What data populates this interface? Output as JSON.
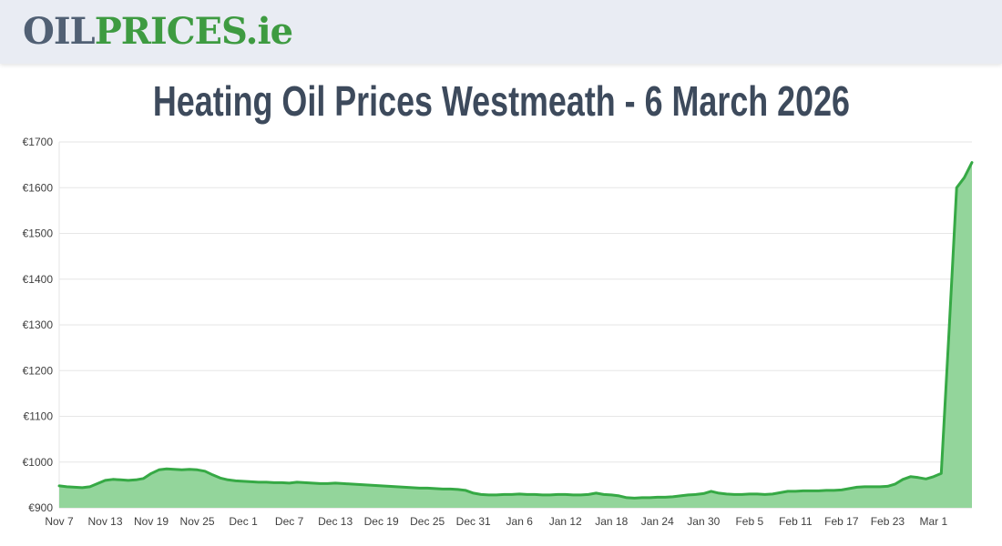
{
  "header": {
    "logo": {
      "oil": "OIL",
      "prices": "PRICES",
      "tld": ".ie",
      "oil_color": "#516074",
      "green_color": "#3e9b41",
      "background": "#e9ecf3"
    }
  },
  "title": {
    "text": "Heating Oil Prices Westmeath - 6 March 2026",
    "color": "#3d4a5c"
  },
  "chart_data": {
    "type": "area",
    "title": "Heating Oil Prices Westmeath - 6 March 2026",
    "xlabel": "",
    "ylabel": "",
    "ylim": [
      900,
      1700
    ],
    "ytick_step": 100,
    "ytick_labels": [
      "€900",
      "€1000",
      "€1100",
      "€1200",
      "€1300",
      "€1400",
      "€1500",
      "€1600",
      "€1700"
    ],
    "xtick_labels": [
      "Nov 7",
      "Nov 13",
      "Nov 19",
      "Nov 25",
      "Dec 1",
      "Dec 7",
      "Dec 13",
      "Dec 19",
      "Dec 25",
      "Dec 31",
      "Jan 6",
      "Jan 12",
      "Jan 18",
      "Jan 24",
      "Jan 30",
      "Feb 5",
      "Feb 11",
      "Feb 17",
      "Feb 23",
      "Mar 1"
    ],
    "xtick_every": 6,
    "grid": "horizontal-only",
    "legend": "off",
    "line_color": "#36a945",
    "fill_color": "#93d59b",
    "grid_color": "#e6e6e6",
    "axis_line_color": "#d6d6d6",
    "categories": [
      "Nov 7",
      "Nov 8",
      "Nov 9",
      "Nov 10",
      "Nov 11",
      "Nov 12",
      "Nov 13",
      "Nov 14",
      "Nov 15",
      "Nov 16",
      "Nov 17",
      "Nov 18",
      "Nov 19",
      "Nov 20",
      "Nov 21",
      "Nov 22",
      "Nov 23",
      "Nov 24",
      "Nov 25",
      "Nov 26",
      "Nov 27",
      "Nov 28",
      "Nov 29",
      "Nov 30",
      "Dec 1",
      "Dec 2",
      "Dec 3",
      "Dec 4",
      "Dec 5",
      "Dec 6",
      "Dec 7",
      "Dec 8",
      "Dec 9",
      "Dec 10",
      "Dec 11",
      "Dec 12",
      "Dec 13",
      "Dec 14",
      "Dec 15",
      "Dec 16",
      "Dec 17",
      "Dec 18",
      "Dec 19",
      "Dec 20",
      "Dec 21",
      "Dec 22",
      "Dec 23",
      "Dec 24",
      "Dec 25",
      "Dec 26",
      "Dec 27",
      "Dec 28",
      "Dec 29",
      "Dec 30",
      "Dec 31",
      "Jan 1",
      "Jan 2",
      "Jan 3",
      "Jan 4",
      "Jan 5",
      "Jan 6",
      "Jan 7",
      "Jan 8",
      "Jan 9",
      "Jan 10",
      "Jan 11",
      "Jan 12",
      "Jan 13",
      "Jan 14",
      "Jan 15",
      "Jan 16",
      "Jan 17",
      "Jan 18",
      "Jan 19",
      "Jan 20",
      "Jan 21",
      "Jan 22",
      "Jan 23",
      "Jan 24",
      "Jan 25",
      "Jan 26",
      "Jan 27",
      "Jan 28",
      "Jan 29",
      "Jan 30",
      "Jan 31",
      "Feb 1",
      "Feb 2",
      "Feb 3",
      "Feb 4",
      "Feb 5",
      "Feb 6",
      "Feb 7",
      "Feb 8",
      "Feb 9",
      "Feb 10",
      "Feb 11",
      "Feb 12",
      "Feb 13",
      "Feb 14",
      "Feb 15",
      "Feb 16",
      "Feb 17",
      "Feb 18",
      "Feb 19",
      "Feb 20",
      "Feb 21",
      "Feb 22",
      "Feb 23",
      "Feb 24",
      "Feb 25",
      "Feb 26",
      "Feb 27",
      "Feb 28",
      "Mar 1",
      "Mar 2",
      "Mar 3",
      "Mar 4",
      "Mar 5",
      "Mar 6"
    ],
    "values": [
      948,
      946,
      945,
      944,
      946,
      953,
      960,
      962,
      961,
      960,
      961,
      964,
      975,
      983,
      985,
      984,
      983,
      984,
      983,
      980,
      972,
      965,
      961,
      959,
      958,
      957,
      956,
      956,
      955,
      955,
      954,
      956,
      955,
      954,
      953,
      953,
      954,
      953,
      952,
      951,
      950,
      949,
      948,
      947,
      946,
      945,
      944,
      943,
      943,
      942,
      941,
      941,
      940,
      938,
      932,
      929,
      928,
      928,
      929,
      929,
      930,
      929,
      929,
      928,
      928,
      929,
      929,
      928,
      928,
      929,
      932,
      929,
      928,
      926,
      922,
      921,
      922,
      922,
      923,
      923,
      924,
      926,
      928,
      929,
      931,
      936,
      932,
      930,
      929,
      929,
      930,
      930,
      929,
      930,
      933,
      936,
      936,
      937,
      937,
      937,
      938,
      938,
      939,
      942,
      945,
      946,
      946,
      946,
      947,
      952,
      962,
      968,
      966,
      963,
      968,
      975,
      1280,
      1600,
      1622,
      1655
    ]
  }
}
